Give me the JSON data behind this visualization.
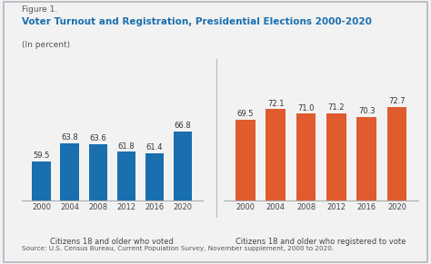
{
  "figure_label": "Figure 1.",
  "title": "Voter Turnout and Registration, Presidential Elections 2000-2020",
  "subtitle": "(In percent)",
  "years": [
    "2000",
    "2004",
    "2008",
    "2012",
    "2016",
    "2020"
  ],
  "voted_values": [
    59.5,
    63.8,
    63.6,
    61.8,
    61.4,
    66.8
  ],
  "registered_values": [
    69.5,
    72.1,
    71.0,
    71.2,
    70.3,
    72.7
  ],
  "voted_color": "#1a6faf",
  "registered_color": "#e05c2e",
  "voted_label": "Citizens 18 and older who voted",
  "registered_label": "Citizens 18 and older who registered to vote",
  "source_text": "Source: U.S. Census Bureau, Current Population Survey, November supplement, 2000 to 2020.",
  "background_color": "#f2f2f2",
  "border_color": "#b0b8c0",
  "title_color": "#1a6faf",
  "figure_label_color": "#555555",
  "subtitle_color": "#555555",
  "bar_width": 0.65,
  "ylim_min": 50,
  "ylim_max": 80,
  "value_fontsize": 6.0,
  "axis_label_fontsize": 6.0,
  "tick_fontsize": 6.0,
  "title_fontsize": 7.5,
  "figure_label_fontsize": 6.5,
  "source_fontsize": 5.2
}
